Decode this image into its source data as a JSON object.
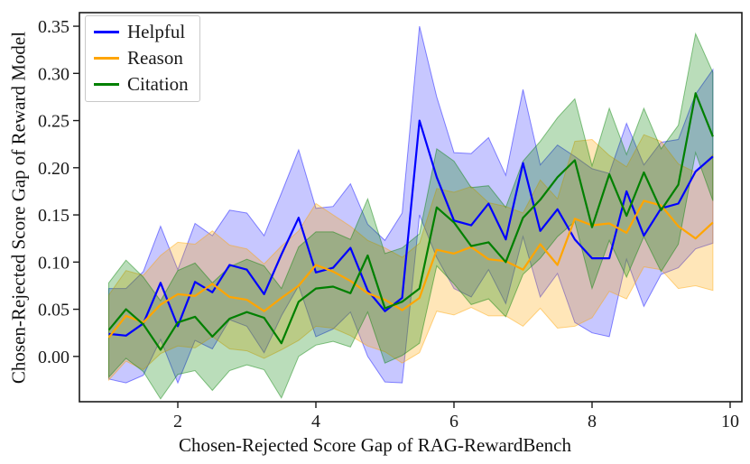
{
  "figure": {
    "xlabel": "Chosen-Rejected Score Gap of RAG-RewardBench",
    "ylabel": "Chosen-Rejected Score Gap of Reward Model",
    "background_color": "#ffffff",
    "spine_color": "#1a1a1a"
  },
  "chart_data": {
    "type": "line",
    "title": "",
    "xlabel": "Chosen-Rejected Score Gap of RAG-RewardBench",
    "ylabel": "Chosen-Rejected Score Gap of Reward Model",
    "grid": false,
    "legend_position": "upper-left",
    "xlim": [
      0.575,
      10.17
    ],
    "ylim": [
      -0.048,
      0.3644
    ],
    "x_tick_values": [
      2,
      4,
      6,
      8,
      10
    ],
    "x_tick_labels": [
      "2",
      "4",
      "6",
      "8",
      "10"
    ],
    "y_tick_values": [
      0.0,
      0.05,
      0.1,
      0.15,
      0.2,
      0.25,
      0.3,
      0.35
    ],
    "y_tick_labels": [
      "0.00",
      "0.05",
      "0.10",
      "0.15",
      "0.20",
      "0.25",
      "0.30",
      "0.35"
    ],
    "x": [
      1.0,
      1.25,
      1.5,
      1.75,
      2.0,
      2.25,
      2.5,
      2.75,
      3.0,
      3.25,
      3.5,
      3.75,
      4.0,
      4.25,
      4.5,
      4.75,
      5.0,
      5.25,
      5.5,
      5.75,
      6.0,
      6.25,
      6.5,
      6.75,
      7.0,
      7.25,
      7.5,
      7.75,
      8.0,
      8.25,
      8.5,
      8.75,
      9.0,
      9.25,
      9.5,
      9.75
    ],
    "series": [
      {
        "name": "Helpful",
        "color": "#0000ff",
        "band_opacity": 0.22,
        "values": [
          0.024,
          0.022,
          0.035,
          0.078,
          0.032,
          0.079,
          0.068,
          0.097,
          0.092,
          0.066,
          0.108,
          0.147,
          0.089,
          0.094,
          0.115,
          0.07,
          0.048,
          0.062,
          0.25,
          0.19,
          0.144,
          0.139,
          0.162,
          0.124,
          0.205,
          0.133,
          0.156,
          0.124,
          0.104,
          0.104,
          0.175,
          0.128,
          0.157,
          0.162,
          0.196,
          0.212
        ],
        "band_lower": [
          -0.024,
          -0.028,
          -0.02,
          0.018,
          -0.028,
          0.017,
          0.008,
          0.039,
          0.032,
          0.004,
          0.043,
          0.075,
          0.021,
          0.029,
          0.047,
          0.0,
          -0.027,
          -0.028,
          0.15,
          0.105,
          0.072,
          0.063,
          0.092,
          0.056,
          0.127,
          0.063,
          0.088,
          0.036,
          0.025,
          0.021,
          0.103,
          0.053,
          0.087,
          0.094,
          0.114,
          0.12
        ],
        "band_upper": [
          0.072,
          0.072,
          0.09,
          0.138,
          0.092,
          0.141,
          0.128,
          0.155,
          0.152,
          0.128,
          0.173,
          0.219,
          0.157,
          0.159,
          0.183,
          0.14,
          0.123,
          0.152,
          0.35,
          0.275,
          0.216,
          0.215,
          0.232,
          0.192,
          0.283,
          0.203,
          0.224,
          0.212,
          0.199,
          0.194,
          0.247,
          0.203,
          0.227,
          0.23,
          0.278,
          0.304
        ]
      },
      {
        "name": "Reason",
        "color": "#ffa500",
        "band_opacity": 0.28,
        "values": [
          0.02,
          0.043,
          0.036,
          0.055,
          0.066,
          0.064,
          0.077,
          0.063,
          0.06,
          0.048,
          0.062,
          0.075,
          0.097,
          0.09,
          0.08,
          0.067,
          0.06,
          0.049,
          0.062,
          0.113,
          0.109,
          0.116,
          0.103,
          0.101,
          0.092,
          0.119,
          0.097,
          0.146,
          0.139,
          0.141,
          0.131,
          0.165,
          0.16,
          0.138,
          0.125,
          0.142
        ],
        "band_lower": [
          -0.025,
          -0.005,
          -0.014,
          0.003,
          0.011,
          0.009,
          0.021,
          0.008,
          0.006,
          -0.002,
          0.007,
          0.017,
          0.032,
          0.03,
          0.022,
          0.011,
          0.005,
          -0.007,
          0.004,
          0.048,
          0.044,
          0.052,
          0.043,
          0.043,
          0.032,
          0.051,
          0.03,
          0.032,
          0.041,
          0.069,
          0.061,
          0.095,
          0.092,
          0.072,
          0.075,
          0.07
        ],
        "band_upper": [
          0.065,
          0.091,
          0.086,
          0.107,
          0.121,
          0.119,
          0.133,
          0.118,
          0.114,
          0.098,
          0.117,
          0.133,
          0.162,
          0.15,
          0.138,
          0.123,
          0.115,
          0.105,
          0.12,
          0.178,
          0.174,
          0.18,
          0.163,
          0.159,
          0.152,
          0.187,
          0.167,
          0.228,
          0.23,
          0.213,
          0.201,
          0.235,
          0.228,
          0.204,
          0.195,
          0.214
        ]
      },
      {
        "name": "Citation",
        "color": "#008000",
        "band_opacity": 0.27,
        "values": [
          0.028,
          0.05,
          0.034,
          0.007,
          0.036,
          0.042,
          0.021,
          0.04,
          0.047,
          0.041,
          0.014,
          0.058,
          0.072,
          0.074,
          0.067,
          0.107,
          0.051,
          0.058,
          0.072,
          0.158,
          0.142,
          0.117,
          0.121,
          0.1,
          0.147,
          0.166,
          0.19,
          0.208,
          0.137,
          0.193,
          0.149,
          0.195,
          0.155,
          0.182,
          0.279,
          0.233
        ],
        "band_lower": [
          -0.022,
          -0.002,
          -0.016,
          -0.045,
          -0.019,
          -0.015,
          -0.036,
          -0.015,
          -0.009,
          -0.014,
          -0.044,
          0.0,
          0.012,
          0.016,
          0.01,
          0.047,
          -0.007,
          0.001,
          0.014,
          0.096,
          0.077,
          0.055,
          0.061,
          0.042,
          0.087,
          0.104,
          0.127,
          0.143,
          0.072,
          0.123,
          0.084,
          0.127,
          0.09,
          0.119,
          0.216,
          0.165
        ],
        "band_upper": [
          0.078,
          0.102,
          0.084,
          0.059,
          0.091,
          0.099,
          0.078,
          0.095,
          0.103,
          0.096,
          0.072,
          0.116,
          0.132,
          0.132,
          0.124,
          0.167,
          0.109,
          0.115,
          0.13,
          0.22,
          0.207,
          0.179,
          0.181,
          0.158,
          0.207,
          0.228,
          0.253,
          0.273,
          0.202,
          0.263,
          0.214,
          0.263,
          0.22,
          0.245,
          0.342,
          0.301
        ]
      }
    ]
  },
  "legend": {
    "items": [
      {
        "label": "Helpful"
      },
      {
        "label": "Reason"
      },
      {
        "label": "Citation"
      }
    ]
  }
}
